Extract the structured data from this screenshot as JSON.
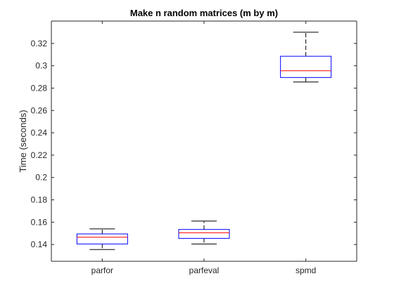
{
  "chart_data": {
    "type": "boxplot",
    "title": "Make n random matrices (m by m)",
    "xlabel": "",
    "ylabel": "Time (seconds)",
    "categories": [
      "parfor",
      "parfeval",
      "spmd"
    ],
    "ylim": [
      0.125,
      0.34
    ],
    "yticks": [
      0.14,
      0.16,
      0.18,
      0.2,
      0.22,
      0.24,
      0.26,
      0.28,
      0.3,
      0.32
    ],
    "ytick_labels": [
      "0.14",
      "0.16",
      "0.18",
      "0.2",
      "0.22",
      "0.24",
      "0.26",
      "0.28",
      "0.3",
      "0.32"
    ],
    "grid": false,
    "boxes": [
      {
        "category": "parfor",
        "whisker_low": 0.1355,
        "q1": 0.1405,
        "median": 0.1465,
        "q3": 0.1495,
        "whisker_high": 0.154
      },
      {
        "category": "parfeval",
        "whisker_low": 0.1405,
        "q1": 0.1455,
        "median": 0.1505,
        "q3": 0.1535,
        "whisker_high": 0.161
      },
      {
        "category": "spmd",
        "whisker_low": 0.2855,
        "q1": 0.2895,
        "median": 0.2955,
        "q3": 0.3085,
        "whisker_high": 0.33
      }
    ],
    "colors": {
      "box": "#0000ff",
      "median": "#ff0000",
      "whisker": "#000000",
      "axis": "#262626"
    }
  }
}
